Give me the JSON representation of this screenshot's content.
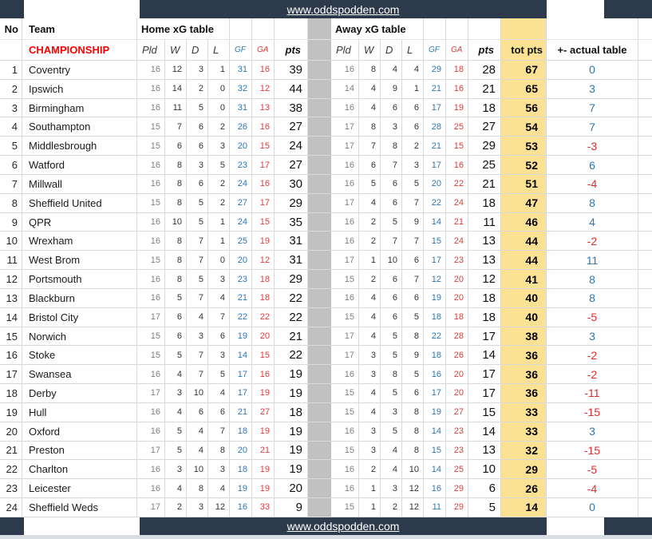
{
  "site": {
    "url_top": "www.oddspodden.com",
    "url_bottom": "www.oddspodden.com"
  },
  "colors": {
    "bar": "#2d3a4c",
    "highlight": "#fbe194",
    "gf_blue": "#2e75b6",
    "ga_red": "#e03b3b",
    "positive": "#2e75b6",
    "negative": "#e02b2b",
    "league_red": "#ff0000",
    "divider_gray": "#c1c1c1"
  },
  "table": {
    "col_no": "No",
    "col_team": "Team",
    "home_title": "Home xG table",
    "away_title": "Away xG table",
    "league": "CHAMPIONSHIP",
    "sub": {
      "pld": "Pld",
      "w": "W",
      "d": "D",
      "l": "L",
      "gf": "GF",
      "ga": "GA",
      "pts": "pts"
    },
    "tot_pts": "tot pts",
    "diff": "+- actual table",
    "rows": [
      {
        "no": 1,
        "team": "Coventry",
        "home": [
          16,
          12,
          3,
          1,
          31,
          16,
          39
        ],
        "away": [
          16,
          8,
          4,
          4,
          29,
          18,
          28
        ],
        "tot": 67,
        "diff": 0
      },
      {
        "no": 2,
        "team": "Ipswich",
        "home": [
          16,
          14,
          2,
          0,
          32,
          12,
          44
        ],
        "away": [
          14,
          4,
          9,
          1,
          21,
          16,
          21
        ],
        "tot": 65,
        "diff": 3
      },
      {
        "no": 3,
        "team": "Birmingham",
        "home": [
          16,
          11,
          5,
          0,
          31,
          13,
          38
        ],
        "away": [
          16,
          4,
          6,
          6,
          17,
          19,
          18
        ],
        "tot": 56,
        "diff": 7
      },
      {
        "no": 4,
        "team": "Southampton",
        "home": [
          15,
          7,
          6,
          2,
          26,
          16,
          27
        ],
        "away": [
          17,
          8,
          3,
          6,
          28,
          25,
          27
        ],
        "tot": 54,
        "diff": 7
      },
      {
        "no": 5,
        "team": "Middlesbrough",
        "home": [
          15,
          6,
          6,
          3,
          20,
          15,
          24
        ],
        "away": [
          17,
          7,
          8,
          2,
          21,
          15,
          29
        ],
        "tot": 53,
        "diff": -3
      },
      {
        "no": 6,
        "team": "Watford",
        "home": [
          16,
          8,
          3,
          5,
          23,
          17,
          27
        ],
        "away": [
          16,
          6,
          7,
          3,
          17,
          16,
          25
        ],
        "tot": 52,
        "diff": 6
      },
      {
        "no": 7,
        "team": "Millwall",
        "home": [
          16,
          8,
          6,
          2,
          24,
          16,
          30
        ],
        "away": [
          16,
          5,
          6,
          5,
          20,
          22,
          21
        ],
        "tot": 51,
        "diff": -4
      },
      {
        "no": 8,
        "team": "Sheffield United",
        "home": [
          15,
          8,
          5,
          2,
          27,
          17,
          29
        ],
        "away": [
          17,
          4,
          6,
          7,
          22,
          24,
          18
        ],
        "tot": 47,
        "diff": 8
      },
      {
        "no": 9,
        "team": "QPR",
        "home": [
          16,
          10,
          5,
          1,
          24,
          15,
          35
        ],
        "away": [
          16,
          2,
          5,
          9,
          14,
          21,
          11
        ],
        "tot": 46,
        "diff": 4
      },
      {
        "no": 10,
        "team": "Wrexham",
        "home": [
          16,
          8,
          7,
          1,
          25,
          19,
          31
        ],
        "away": [
          16,
          2,
          7,
          7,
          15,
          24,
          13
        ],
        "tot": 44,
        "diff": -2
      },
      {
        "no": 11,
        "team": "West Brom",
        "home": [
          15,
          8,
          7,
          0,
          20,
          12,
          31
        ],
        "away": [
          17,
          1,
          10,
          6,
          17,
          23,
          13
        ],
        "tot": 44,
        "diff": 11
      },
      {
        "no": 12,
        "team": "Portsmouth",
        "home": [
          16,
          8,
          5,
          3,
          23,
          18,
          29
        ],
        "away": [
          15,
          2,
          6,
          7,
          12,
          20,
          12
        ],
        "tot": 41,
        "diff": 8
      },
      {
        "no": 13,
        "team": "Blackburn",
        "home": [
          16,
          5,
          7,
          4,
          21,
          18,
          22
        ],
        "away": [
          16,
          4,
          6,
          6,
          19,
          20,
          18
        ],
        "tot": 40,
        "diff": 8
      },
      {
        "no": 14,
        "team": "Bristol City",
        "home": [
          17,
          6,
          4,
          7,
          22,
          22,
          22
        ],
        "away": [
          15,
          4,
          6,
          5,
          18,
          18,
          18
        ],
        "tot": 40,
        "diff": -5
      },
      {
        "no": 15,
        "team": "Norwich",
        "home": [
          15,
          6,
          3,
          6,
          19,
          20,
          21
        ],
        "away": [
          17,
          4,
          5,
          8,
          22,
          28,
          17
        ],
        "tot": 38,
        "diff": 3
      },
      {
        "no": 16,
        "team": "Stoke",
        "home": [
          15,
          5,
          7,
          3,
          14,
          15,
          22
        ],
        "away": [
          17,
          3,
          5,
          9,
          18,
          26,
          14
        ],
        "tot": 36,
        "diff": -2
      },
      {
        "no": 17,
        "team": "Swansea",
        "home": [
          16,
          4,
          7,
          5,
          17,
          16,
          19
        ],
        "away": [
          16,
          3,
          8,
          5,
          16,
          20,
          17
        ],
        "tot": 36,
        "diff": -2
      },
      {
        "no": 18,
        "team": "Derby",
        "home": [
          17,
          3,
          10,
          4,
          17,
          19,
          19
        ],
        "away": [
          15,
          4,
          5,
          6,
          17,
          20,
          17
        ],
        "tot": 36,
        "diff": -11
      },
      {
        "no": 19,
        "team": "Hull",
        "home": [
          16,
          4,
          6,
          6,
          21,
          27,
          18
        ],
        "away": [
          15,
          4,
          3,
          8,
          19,
          27,
          15
        ],
        "tot": 33,
        "diff": -15
      },
      {
        "no": 20,
        "team": "Oxford",
        "home": [
          16,
          5,
          4,
          7,
          18,
          19,
          19
        ],
        "away": [
          16,
          3,
          5,
          8,
          14,
          23,
          14
        ],
        "tot": 33,
        "diff": 3
      },
      {
        "no": 21,
        "team": "Preston",
        "home": [
          17,
          5,
          4,
          8,
          20,
          21,
          19
        ],
        "away": [
          15,
          3,
          4,
          8,
          15,
          23,
          13
        ],
        "tot": 32,
        "diff": -15
      },
      {
        "no": 22,
        "team": "Charlton",
        "home": [
          16,
          3,
          10,
          3,
          18,
          19,
          19
        ],
        "away": [
          16,
          2,
          4,
          10,
          14,
          25,
          10
        ],
        "tot": 29,
        "diff": -5
      },
      {
        "no": 23,
        "team": "Leicester",
        "home": [
          16,
          4,
          8,
          4,
          19,
          19,
          20
        ],
        "away": [
          16,
          1,
          3,
          12,
          16,
          29,
          6
        ],
        "tot": 26,
        "diff": -4
      },
      {
        "no": 24,
        "team": "Sheffield Weds",
        "home": [
          17,
          2,
          3,
          12,
          16,
          33,
          9
        ],
        "away": [
          15,
          1,
          2,
          12,
          11,
          29,
          5
        ],
        "tot": 14,
        "diff": 0
      }
    ]
  }
}
